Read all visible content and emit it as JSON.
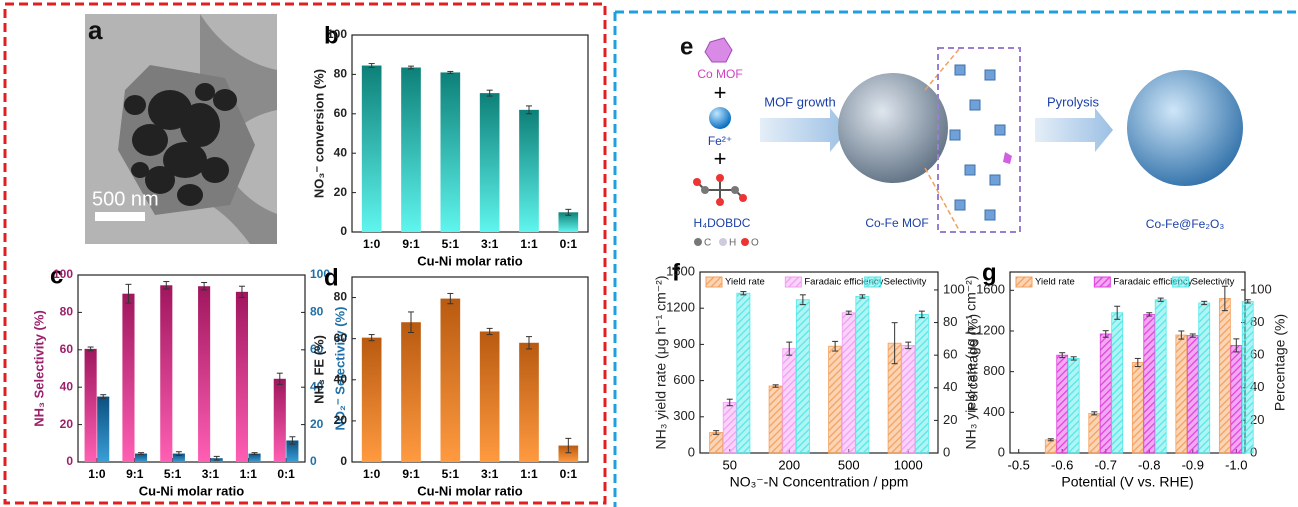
{
  "chart_data": [
    {
      "type": "bar",
      "label": "b",
      "categories": [
        "1:0",
        "9:1",
        "5:1",
        "3:1",
        "1:1",
        "0:1"
      ],
      "series": [
        {
          "values": [
            84.5,
            83.5,
            81,
            70.5,
            62,
            10
          ],
          "errors": [
            1,
            0.7,
            0.5,
            1.5,
            2,
            1.5
          ],
          "gradient": [
            "#0d8078",
            "#5ff5ee"
          ]
        }
      ],
      "ylim": [
        0,
        100
      ],
      "yticks": [
        0,
        20,
        40,
        60,
        80,
        100
      ],
      "xlabel": "Cu-Ni molar ratio",
      "ylabel": "NO₃⁻ conversion (%)"
    },
    {
      "type": "bar",
      "label": "c",
      "categories": [
        "1:0",
        "9:1",
        "5:1",
        "3:1",
        "1:1",
        "0:1"
      ],
      "series": [
        {
          "values": [
            60.5,
            90,
            94.5,
            94,
            91,
            44.5
          ],
          "errors": [
            1,
            5,
            2,
            2,
            3,
            3
          ],
          "gradient": [
            "#a0165e",
            "#ff5fb4"
          ]
        },
        {
          "values": [
            35,
            4.5,
            4.5,
            2,
            4.5,
            11.5
          ],
          "errors": [
            1,
            0.5,
            1,
            1,
            0.5,
            2
          ],
          "gradient": [
            "#0c4f7f",
            "#3a9fd8"
          ],
          "axis": "y2"
        }
      ],
      "ylim": [
        0,
        100
      ],
      "yticks": [
        0,
        20,
        40,
        60,
        80,
        100
      ],
      "y2lim": [
        0,
        100
      ],
      "y2ticks": [
        0,
        20,
        40,
        60,
        80,
        100
      ],
      "xlabel": "Cu-Ni molar ratio",
      "ylabel": "NH₃ Selectivity (%)",
      "y2label": "NO₂⁻ Selectivity (%)",
      "ylabel_color": "#9c1f6a",
      "y2label_color": "#1f6fa8"
    },
    {
      "type": "bar",
      "label": "d",
      "categories": [
        "1:0",
        "9:1",
        "5:1",
        "3:1",
        "1:1",
        "0:1"
      ],
      "series": [
        {
          "values": [
            60.5,
            68,
            79.5,
            63.5,
            58,
            8
          ],
          "errors": [
            1.5,
            5,
            2.5,
            1.5,
            3,
            3.5
          ],
          "gradient": [
            "#b85a10",
            "#ff9a40"
          ]
        }
      ],
      "ylim": [
        0,
        90
      ],
      "yticks": [
        0,
        20,
        40,
        60,
        80
      ],
      "xlabel": "Cu-Ni molar ratio",
      "ylabel": "NH₃ FE (%)"
    },
    {
      "type": "bar",
      "label": "f",
      "categories": [
        "50",
        "200",
        "500",
        "1000"
      ],
      "series": [
        {
          "name": "Yield rate",
          "color": "#f5a05a",
          "hatch": true,
          "values": [
            170,
            555,
            885,
            910
          ],
          "errors": [
            15,
            10,
            40,
            170
          ]
        },
        {
          "name": "Faradaic efficiency",
          "color": "#f29ef2",
          "hatch": true,
          "axis": "y2",
          "values": [
            31,
            64,
            86,
            66
          ],
          "errors": [
            2,
            4,
            1,
            2
          ]
        },
        {
          "name": "Selectivity",
          "color": "#52e8e8",
          "hatch": true,
          "axis": "y2",
          "values": [
            98,
            94,
            96,
            85
          ],
          "errors": [
            1,
            3,
            1,
            2
          ]
        }
      ],
      "ylim": [
        0,
        1500
      ],
      "yticks": [
        0,
        300,
        600,
        900,
        1200,
        1500
      ],
      "y2lim": [
        0,
        111
      ],
      "y2ticks": [
        0,
        20,
        40,
        60,
        80,
        100
      ],
      "xlabel": "NO₃⁻-N Concentration / ppm",
      "ylabel": "NH₃ yield rate  (μg h⁻¹ cm⁻²)",
      "y2label": "Percentage (%)",
      "legend": "top"
    },
    {
      "type": "bar",
      "label": "g",
      "x": [
        -0.6,
        -0.7,
        -0.8,
        -0.9,
        -1.0
      ],
      "series": [
        {
          "name": "Yield rate",
          "color": "#f5a05a",
          "hatch": true,
          "values": [
            130,
            390,
            890,
            1160,
            1520
          ],
          "errors": [
            10,
            15,
            40,
            40,
            120
          ]
        },
        {
          "name": "Faradaic efficiency",
          "color": "#e040e0",
          "hatch": true,
          "axis": "y2",
          "values": [
            60,
            73,
            85,
            72,
            66
          ],
          "errors": [
            1.5,
            2,
            1,
            1,
            4
          ]
        },
        {
          "name": "Selectivity",
          "color": "#52e8e8",
          "hatch": true,
          "axis": "y2",
          "values": [
            58,
            86,
            94,
            92,
            93
          ],
          "errors": [
            1,
            4,
            1,
            1,
            1
          ]
        }
      ],
      "xlim": [
        -0.48,
        -1.02
      ],
      "xticks": [
        -0.5,
        -0.6,
        -0.7,
        -0.8,
        -0.9,
        {
          "value": -1,
          "label": "-1.0"
        }
      ],
      "ylim": [
        0,
        1780
      ],
      "yticks": [
        0,
        400,
        800,
        1200,
        1600
      ],
      "y2lim": [
        0,
        111
      ],
      "y2ticks": [
        0,
        20,
        40,
        60,
        80,
        100
      ],
      "xlabel": "Potential (V vs. RHE)",
      "ylabel": "NH₃ yield rate  (μg h⁻¹ cm⁻²)",
      "y2label": "Percentage (%)",
      "legend": "top"
    }
  ],
  "image_panel": {
    "label": "a",
    "scale_bar": "500 nm"
  },
  "diagram": {
    "label": "e",
    "co_mof": "Co MOF",
    "plus": "+",
    "fe": "Fe²⁺",
    "linker": "H₄DOBDC",
    "atoms": [
      "C",
      "H",
      "O"
    ],
    "step1": "MOF growth",
    "intermediate": "Co-Fe MOF",
    "step2": "Pyrolysis",
    "product": "Co-Fe@Fe₂O₃"
  }
}
